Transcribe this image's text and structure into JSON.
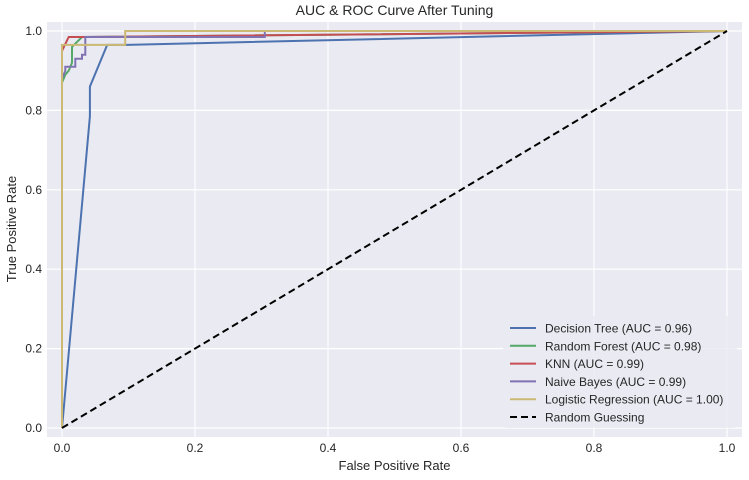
{
  "chart_data": {
    "type": "line",
    "title": "AUC & ROC Curve After Tuning",
    "xlabel": "False Positive Rate",
    "ylabel": "True Positive Rate",
    "xlim": [
      -0.02,
      1.02
    ],
    "ylim": [
      -0.02,
      1.02
    ],
    "xticks": [
      "0.0",
      "0.2",
      "0.4",
      "0.6",
      "0.8",
      "1.0"
    ],
    "yticks": [
      "0.0",
      "0.2",
      "0.4",
      "0.6",
      "0.8",
      "1.0"
    ],
    "grid": true,
    "background": "#EAEAF2",
    "legend_position": "lower-right",
    "series": [
      {
        "name": "Decision Tree (AUC = 0.96)",
        "color": "#4C72B0",
        "dashed": false,
        "x": [
          0,
          0.042,
          0.042,
          0.068,
          0.095,
          1.0
        ],
        "y": [
          0,
          0.785,
          0.86,
          0.965,
          0.965,
          1.0
        ]
      },
      {
        "name": "Random Forest (AUC = 0.98)",
        "color": "#55A868",
        "dashed": false,
        "x": [
          0,
          0,
          0.005,
          0.01,
          0.015,
          0.015,
          0.03,
          1.0
        ],
        "y": [
          0,
          0.87,
          0.89,
          0.9,
          0.92,
          0.96,
          0.985,
          1.0
        ]
      },
      {
        "name": "KNN (AUC = 0.99)",
        "color": "#C44E52",
        "dashed": false,
        "x": [
          0,
          0,
          0.01,
          0.03,
          1.0
        ],
        "y": [
          0,
          0.95,
          0.985,
          0.985,
          1.0
        ]
      },
      {
        "name": "Naive Bayes (AUC = 0.99)",
        "color": "#8172B2",
        "dashed": false,
        "x": [
          0,
          0,
          0.005,
          0.005,
          0.02,
          0.02,
          0.03,
          0.03,
          0.035,
          0.035,
          0.305,
          0.305,
          1.0
        ],
        "y": [
          0,
          0.88,
          0.9,
          0.91,
          0.91,
          0.93,
          0.93,
          0.94,
          0.94,
          0.985,
          0.985,
          1.0,
          1.0
        ]
      },
      {
        "name": "Logistic Regression (AUC = 1.00)",
        "color": "#CCB974",
        "dashed": false,
        "x": [
          0,
          0,
          0.095,
          0.095,
          1.0
        ],
        "y": [
          0,
          0.965,
          0.965,
          1.0,
          1.0
        ]
      },
      {
        "name": "Random Guessing",
        "color": "#000000",
        "dashed": true,
        "x": [
          0,
          1
        ],
        "y": [
          0,
          1
        ]
      }
    ]
  }
}
